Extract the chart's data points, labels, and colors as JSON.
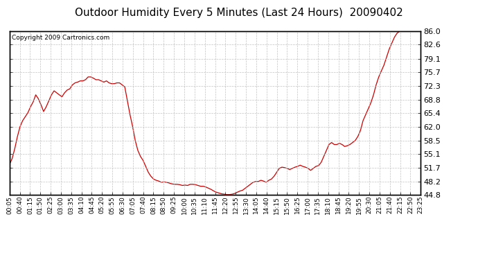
{
  "title": "Outdoor Humidity Every 5 Minutes (Last 24 Hours)  20090402",
  "copyright_text": "Copyright 2009 Cartronics.com",
  "line_color": "#cc0000",
  "background_color": "#ffffff",
  "grid_color": "#bbbbbb",
  "ylim": [
    44.8,
    86.0
  ],
  "yticks": [
    44.8,
    48.2,
    51.7,
    55.1,
    58.5,
    62.0,
    65.4,
    68.8,
    72.3,
    75.7,
    79.1,
    82.6,
    86.0
  ],
  "x_labels": [
    "00:05",
    "00:40",
    "01:15",
    "01:50",
    "02:25",
    "03:00",
    "03:35",
    "04:10",
    "04:45",
    "05:20",
    "05:55",
    "06:30",
    "07:05",
    "07:40",
    "08:15",
    "08:50",
    "09:25",
    "10:00",
    "10:35",
    "11:10",
    "11:45",
    "12:20",
    "12:55",
    "13:30",
    "14:05",
    "14:40",
    "15:15",
    "15:50",
    "16:25",
    "17:00",
    "17:35",
    "18:10",
    "18:45",
    "19:20",
    "19:55",
    "20:30",
    "21:05",
    "21:40",
    "22:15",
    "22:50",
    "23:25"
  ],
  "humidity_values": [
    52.5,
    54.0,
    56.5,
    59.5,
    62.0,
    63.5,
    64.5,
    65.5,
    67.0,
    68.2,
    70.0,
    69.0,
    67.5,
    65.8,
    67.0,
    68.5,
    70.0,
    71.0,
    70.5,
    70.0,
    69.5,
    70.5,
    71.2,
    71.5,
    72.5,
    73.0,
    73.2,
    73.5,
    73.5,
    73.8,
    74.5,
    74.5,
    74.2,
    73.8,
    73.8,
    73.5,
    73.2,
    73.5,
    73.0,
    72.8,
    72.8,
    73.0,
    73.0,
    72.5,
    72.0,
    68.5,
    65.0,
    62.0,
    58.5,
    56.0,
    54.5,
    53.5,
    52.0,
    50.5,
    49.5,
    48.8,
    48.5,
    48.3,
    48.0,
    48.1,
    48.0,
    47.8,
    47.6,
    47.5,
    47.5,
    47.4,
    47.2,
    47.3,
    47.2,
    47.5,
    47.5,
    47.4,
    47.2,
    47.0,
    47.0,
    46.8,
    46.5,
    46.2,
    45.8,
    45.5,
    45.3,
    45.1,
    45.0,
    44.9,
    44.9,
    45.0,
    45.2,
    45.5,
    45.8,
    46.0,
    46.5,
    47.0,
    47.5,
    48.0,
    48.2,
    48.2,
    48.5,
    48.3,
    48.0,
    48.5,
    48.8,
    49.5,
    50.5,
    51.5,
    51.8,
    51.7,
    51.5,
    51.2,
    51.5,
    51.8,
    52.0,
    52.3,
    52.0,
    51.8,
    51.5,
    51.0,
    51.5,
    52.0,
    52.2,
    53.0,
    54.5,
    56.0,
    57.5,
    58.0,
    57.5,
    57.5,
    57.8,
    57.5,
    57.0,
    57.2,
    57.5,
    58.0,
    58.5,
    59.5,
    61.0,
    63.5,
    65.0,
    66.5,
    68.0,
    70.0,
    72.5,
    74.5,
    76.0,
    77.5,
    79.5,
    81.5,
    83.0,
    84.5,
    85.5,
    86.0,
    86.2,
    86.5,
    87.0,
    87.5,
    87.8,
    88.0,
    88.0,
    88.0
  ],
  "title_fontsize": 11,
  "copyright_fontsize": 6.5,
  "tick_fontsize": 8,
  "figwidth": 6.9,
  "figheight": 3.75,
  "dpi": 100
}
